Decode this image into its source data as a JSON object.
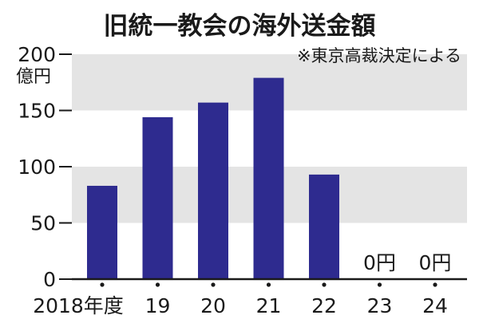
{
  "chart_data": {
    "type": "bar",
    "title": "旧統一教会の海外送金額",
    "note": "※東京高裁決定による",
    "ylabel": "億円",
    "ylim": [
      0,
      200
    ],
    "yticks": [
      0,
      50,
      100,
      150,
      200
    ],
    "grid_bands": true,
    "categories": [
      "2018年度",
      "19",
      "20",
      "21",
      "22",
      "23",
      "24"
    ],
    "values": [
      83,
      144,
      157,
      179,
      93,
      0,
      0
    ],
    "data_labels": [
      "",
      "",
      "",
      "",
      "",
      "0円",
      "0円"
    ],
    "colors": {
      "bar": "#2e2b8f",
      "band": "#e4e4e4",
      "axis": "#1a1a1a",
      "text": "#1a1a1a"
    }
  }
}
